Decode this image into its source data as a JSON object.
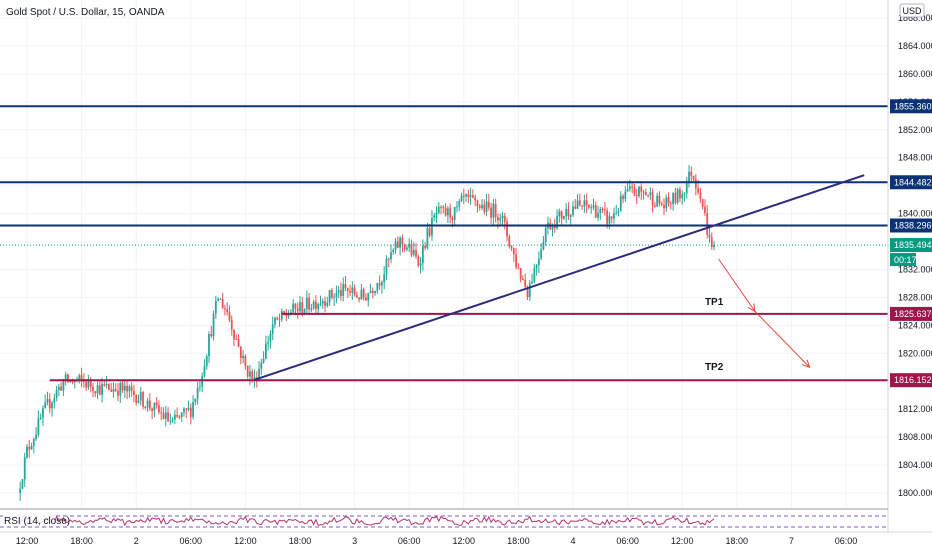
{
  "chart_data": {
    "type": "candlestick",
    "title": "Gold Spot / U.S. Dollar, 15, OANDA",
    "currency": "USD",
    "ylim": [
      1798,
      1870
    ],
    "y_ticks": [
      1800,
      1804,
      1808,
      1812,
      1816,
      1820,
      1824,
      1828,
      1832,
      1836,
      1840,
      1844,
      1848,
      1852,
      1856,
      1860,
      1864,
      1868
    ],
    "x_ticks": [
      {
        "label": "12:00",
        "t": 0
      },
      {
        "label": "18:00",
        "t": 6
      },
      {
        "label": "2",
        "t": 12
      },
      {
        "label": "06:00",
        "t": 18
      },
      {
        "label": "12:00",
        "t": 24
      },
      {
        "label": "18:00",
        "t": 30
      },
      {
        "label": "3",
        "t": 36
      },
      {
        "label": "06:00",
        "t": 42
      },
      {
        "label": "12:00",
        "t": 48
      },
      {
        "label": "18:00",
        "t": 54
      },
      {
        "label": "4",
        "t": 60
      },
      {
        "label": "06:00",
        "t": 66
      },
      {
        "label": "12:00",
        "t": 72
      },
      {
        "label": "18:00",
        "t": 78
      },
      {
        "label": "7",
        "t": 84
      },
      {
        "label": "06:00",
        "t": 90
      }
    ],
    "path_anchors": [
      [
        -1,
        1800
      ],
      [
        0,
        1806
      ],
      [
        2,
        1812
      ],
      [
        4,
        1816
      ],
      [
        6,
        1816
      ],
      [
        8,
        1815
      ],
      [
        10,
        1815
      ],
      [
        12,
        1814
      ],
      [
        14,
        1812
      ],
      [
        16,
        1810
      ],
      [
        18,
        1812
      ],
      [
        19,
        1816
      ],
      [
        20,
        1822
      ],
      [
        21,
        1828
      ],
      [
        22,
        1826
      ],
      [
        23,
        1822
      ],
      [
        24,
        1818
      ],
      [
        25,
        1816
      ],
      [
        26,
        1820
      ],
      [
        27,
        1824
      ],
      [
        29,
        1826
      ],
      [
        31,
        1827
      ],
      [
        33,
        1828
      ],
      [
        35,
        1829
      ],
      [
        37,
        1828
      ],
      [
        39,
        1831
      ],
      [
        40,
        1834
      ],
      [
        41,
        1836
      ],
      [
        42,
        1835
      ],
      [
        43,
        1833
      ],
      [
        44,
        1837
      ],
      [
        45,
        1840
      ],
      [
        47,
        1840
      ],
      [
        48,
        1842
      ],
      [
        50,
        1841
      ],
      [
        52,
        1840
      ],
      [
        53,
        1836
      ],
      [
        54,
        1832
      ],
      [
        55,
        1829
      ],
      [
        56,
        1833
      ],
      [
        57,
        1838
      ],
      [
        58,
        1839
      ],
      [
        60,
        1841
      ],
      [
        62,
        1841
      ],
      [
        64,
        1839
      ],
      [
        66,
        1843
      ],
      [
        68,
        1843
      ],
      [
        70,
        1841
      ],
      [
        72,
        1843
      ],
      [
        73,
        1846
      ],
      [
        74,
        1843
      ],
      [
        75,
        1836
      ],
      [
        75.6,
        1835.49
      ]
    ],
    "horizontal_levels": [
      {
        "value": 1855.36,
        "label": "1855.360",
        "color": "#0c3276",
        "t_start": -3
      },
      {
        "value": 1844.482,
        "label": "1844.482",
        "color": "#0c3276",
        "t_start": -3
      },
      {
        "value": 1838.296,
        "label": "1838.296",
        "color": "#0c3276",
        "t_start": -3
      },
      {
        "value": 1825.637,
        "label": "1825.637",
        "color": "#a0154c",
        "t_start": 28
      },
      {
        "value": 1816.152,
        "label": "1816.152",
        "color": "#a0154c",
        "t_start": 2.5
      }
    ],
    "trendline": {
      "t1": 25,
      "v1": 1816.2,
      "t2": 92,
      "v2": 1845.5,
      "color": "#2c2a7c"
    },
    "current_price": {
      "value": 1835.494,
      "label": "1835.494",
      "timer": "00:17",
      "color": "#089981"
    },
    "annotations": [
      {
        "text": "TP1",
        "t": 74.5,
        "v": 1826.9
      },
      {
        "text": "TP2",
        "t": 74.5,
        "v": 1817.6
      }
    ],
    "arrows": [
      {
        "t1": 76,
        "v1": 1833.5,
        "t2": 80,
        "v2": 1826,
        "color": "#e8463a"
      },
      {
        "t1": 80,
        "v1": 1826,
        "t2": 86,
        "v2": 1818,
        "color": "#e8463a"
      }
    ],
    "rsi": {
      "label": "RSI (14, close)",
      "color": "#b2336b",
      "band_color": "#7e57c2"
    }
  }
}
